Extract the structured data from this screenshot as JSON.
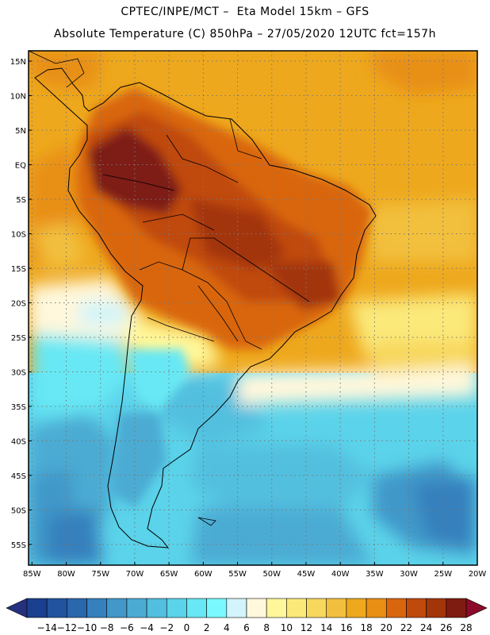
{
  "header": {
    "line1": "CPTEC/INPE/MCT –  Eta Model 15km – GFS",
    "line2": "Absolute Temperature (C) 850hPa – 27/05/2020 12UTC fct=157h"
  },
  "map": {
    "lat_labels": [
      "15N",
      "10N",
      "5N",
      "EQ",
      "5S",
      "10S",
      "15S",
      "20S",
      "25S",
      "30S",
      "35S",
      "40S",
      "45S",
      "50S",
      "55S"
    ],
    "lat_values": [
      15,
      10,
      5,
      0,
      -5,
      -10,
      -15,
      -20,
      -25,
      -30,
      -35,
      -40,
      -45,
      -50,
      -55
    ],
    "lon_labels": [
      "85W",
      "80W",
      "75W",
      "70W",
      "65W",
      "60W",
      "55W",
      "50W",
      "45W",
      "40W",
      "35W",
      "30W",
      "25W",
      "20W"
    ],
    "lon_values": [
      -85,
      -80,
      -75,
      -70,
      -65,
      -60,
      -55,
      -50,
      -45,
      -40,
      -35,
      -30,
      -25,
      -20
    ],
    "extent": {
      "lon_min": -85.5,
      "lon_max": -20,
      "lat_min": -58,
      "lat_max": 16.5
    }
  },
  "colorbar": {
    "labels": [
      "-14",
      "-12",
      "-10",
      "-8",
      "-6",
      "-4",
      "-2",
      "0",
      "2",
      "4",
      "6",
      "8",
      "10",
      "12",
      "14",
      "16",
      "18",
      "20",
      "22",
      "24",
      "26",
      "28"
    ],
    "colors": [
      "#1a3f8f",
      "#23539f",
      "#2a67ad",
      "#3580bd",
      "#4198c9",
      "#4cabd3",
      "#52bfdf",
      "#5bd3ea",
      "#67e8f4",
      "#7afaff",
      "#d2f4fa",
      "#fff8dc",
      "#fff79a",
      "#fbe97a",
      "#f7d75c",
      "#f2c03e",
      "#eea81d",
      "#e88f14",
      "#d9660f",
      "#c04a0c",
      "#a3350b",
      "#7e1c12",
      "#8b0a2a"
    ],
    "under_color": "#26307f",
    "over_color": "#8b0a2a"
  },
  "palette": {
    "ocean_north": "#eea81d",
    "ocean_cold": "#5bd3ea",
    "frame": "#000000"
  }
}
